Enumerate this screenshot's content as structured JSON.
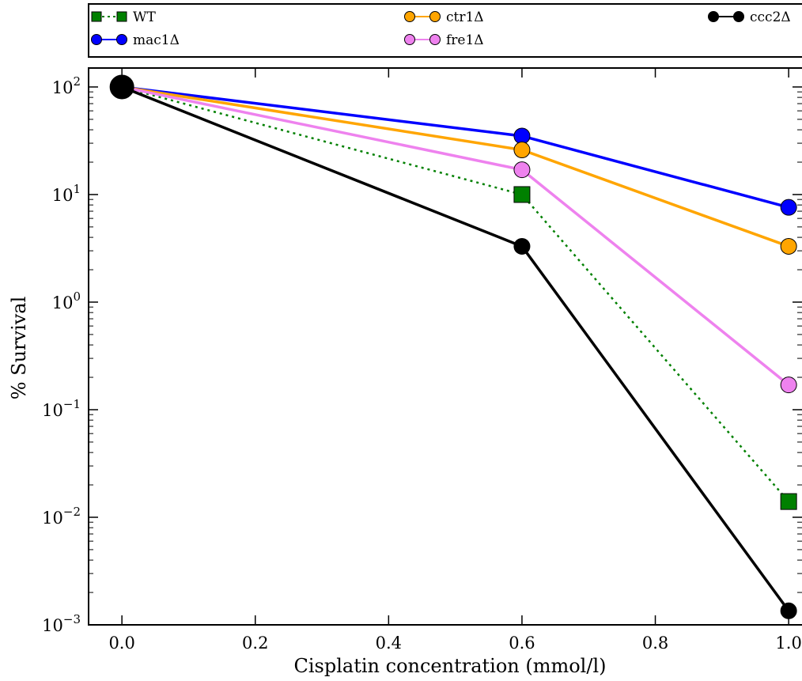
{
  "chart_data": {
    "type": "line",
    "xlabel": "Cisplatin concentration (mmol/l)",
    "ylabel": "% Survival",
    "xlim": [
      -0.05,
      1.02
    ],
    "ylim": [
      0.001,
      150
    ],
    "yscale": "log",
    "grid": false,
    "legend_position": "top",
    "x_ticks": [
      "0.0",
      "0.2",
      "0.4",
      "0.6",
      "0.8",
      "1.0"
    ],
    "y_ticks": [
      {
        "base": "10",
        "exp": "2",
        "value": 100
      },
      {
        "base": "10",
        "exp": "1",
        "value": 10
      },
      {
        "base": "10",
        "exp": "0",
        "value": 1
      },
      {
        "base": "10",
        "exp": "−1",
        "value": 0.1
      },
      {
        "base": "10",
        "exp": "−2",
        "value": 0.01
      },
      {
        "base": "10",
        "exp": "−3",
        "value": 0.001
      }
    ],
    "x": [
      0.0,
      0.6,
      1.0
    ],
    "series": [
      {
        "name": "WT",
        "color": "#008000",
        "marker": "square",
        "dashed": true,
        "values": [
          100,
          10,
          0.014
        ]
      },
      {
        "name": "mac1Δ",
        "color": "#0000ff",
        "marker": "circle",
        "dashed": false,
        "values": [
          100,
          35,
          7.6
        ]
      },
      {
        "name": "ctr1Δ",
        "color": "#ffa500",
        "marker": "circle",
        "dashed": false,
        "values": [
          100,
          26,
          3.3
        ]
      },
      {
        "name": "fre1Δ",
        "color": "#ee82ee",
        "marker": "circle",
        "dashed": false,
        "values": [
          100,
          17,
          0.17
        ]
      },
      {
        "name": "ccc2Δ",
        "color": "#000000",
        "marker": "circle",
        "dashed": false,
        "values": [
          100,
          3.3,
          0.00135
        ]
      }
    ]
  }
}
